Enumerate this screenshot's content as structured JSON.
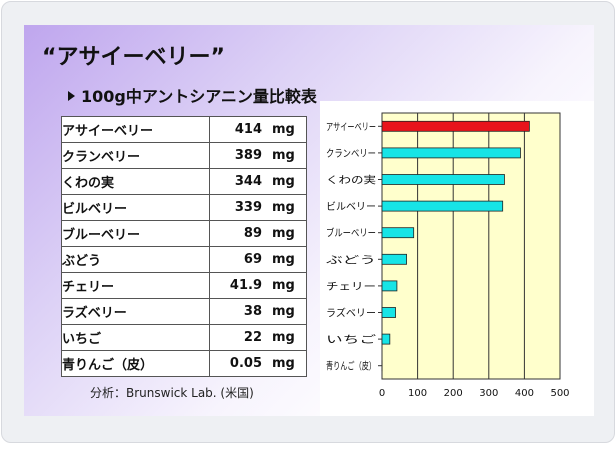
{
  "slide": {
    "title": "“アサイーベリー”",
    "subtitle": "100g中アントシアニン量比較表",
    "source": "分析：Brunswick Lab. (米国)"
  },
  "table": {
    "rows": [
      {
        "name": "アサイーベリー",
        "value": "414",
        "unit": "mg"
      },
      {
        "name": "クランベリー",
        "value": "389",
        "unit": "mg"
      },
      {
        "name": "くわの実",
        "value": "344",
        "unit": "mg"
      },
      {
        "name": "ビルベリー",
        "value": "339",
        "unit": "mg"
      },
      {
        "name": "ブルーベリー",
        "value": "89",
        "unit": "mg"
      },
      {
        "name": "ぶどう",
        "value": "69",
        "unit": "mg"
      },
      {
        "name": "チェリー",
        "value": "41.9",
        "unit": "mg"
      },
      {
        "name": "ラズベリー",
        "value": "38",
        "unit": "mg"
      },
      {
        "name": "いちご",
        "value": "22",
        "unit": "mg"
      },
      {
        "name": "青りんご（皮）",
        "value": "0.05",
        "unit": "mg"
      }
    ]
  },
  "chart_data": {
    "type": "bar",
    "orientation": "horizontal",
    "categories": [
      "アサイーベリー",
      "クランベリー",
      "くわの実",
      "ビルベリー",
      "ブルーベリー",
      "ぶどう",
      "チェリー",
      "ラズベリー",
      "いちご",
      "青りんご（皮）"
    ],
    "values": [
      414,
      389,
      344,
      339,
      89,
      69,
      41.9,
      38,
      22,
      0.05
    ],
    "xlim": [
      0,
      500
    ],
    "xticks": [
      0,
      100,
      200,
      300,
      400,
      500
    ],
    "grid": "vertical",
    "colors": {
      "highlight": "#e8141c",
      "bars": "#17e4e6",
      "plot_bg": "#ffffcc"
    },
    "highlight_index": 0
  }
}
